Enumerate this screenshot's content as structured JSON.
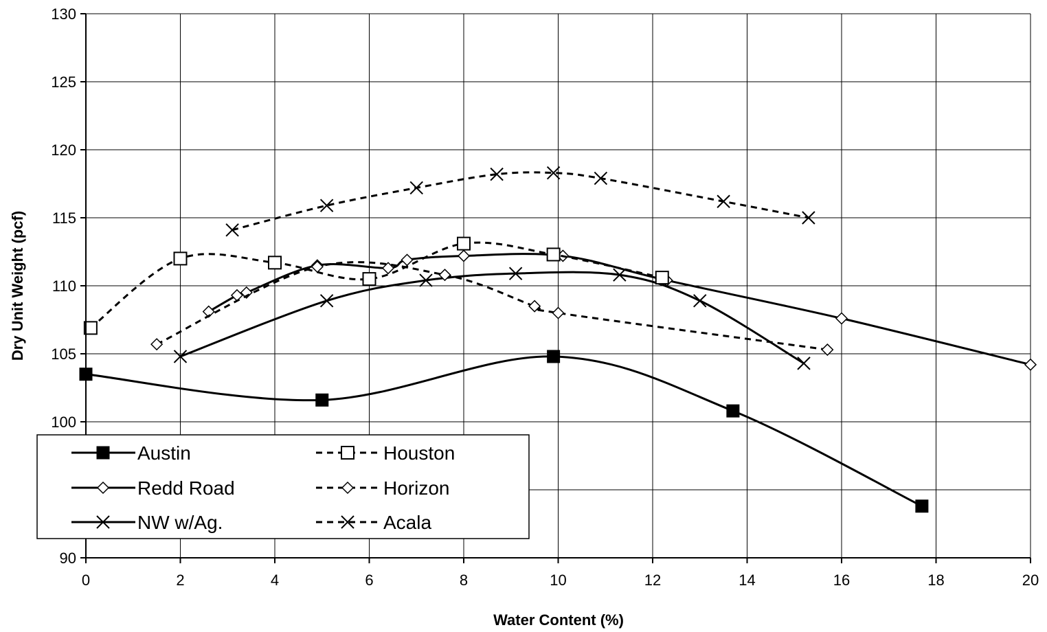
{
  "chart_data": {
    "type": "line",
    "title": "",
    "xlabel": "Water Content (%)",
    "ylabel": "Dry Unit Weight (pcf)",
    "xlim": [
      0,
      20
    ],
    "ylim": [
      90,
      130
    ],
    "xticks": [
      "0",
      "2",
      "4",
      "6",
      "8",
      "10",
      "12",
      "14",
      "16",
      "18",
      "20"
    ],
    "yticks": [
      "90",
      "95",
      "100",
      "105",
      "110",
      "115",
      "120",
      "125",
      "130"
    ],
    "ytick_labels_shown": [
      "90",
      "",
      "100",
      "105",
      "110",
      "115",
      "120",
      "125",
      "130"
    ],
    "grid": true,
    "legend_position": "bottom-left",
    "series": [
      {
        "name": "Austin",
        "line": "solid",
        "marker": "filled-square",
        "x": [
          0.0,
          5.0,
          9.9,
          13.7,
          17.7
        ],
        "y": [
          103.5,
          101.6,
          104.8,
          100.8,
          93.8
        ]
      },
      {
        "name": "Redd Road",
        "line": "solid",
        "marker": "open-diamond",
        "x": [
          2.6,
          3.2,
          3.4,
          4.9,
          6.4,
          6.8,
          8.0,
          10.1,
          12.3,
          16.0,
          20.0
        ],
        "y": [
          108.1,
          109.3,
          109.5,
          111.5,
          111.3,
          111.9,
          112.2,
          112.2,
          110.4,
          107.6,
          104.2
        ]
      },
      {
        "name": "NW w/Ag.",
        "line": "solid",
        "marker": "x",
        "x": [
          2.0,
          5.1,
          7.2,
          9.1,
          11.3,
          13.0,
          15.2
        ],
        "y": [
          104.8,
          108.9,
          110.4,
          110.9,
          110.8,
          108.9,
          104.3
        ]
      },
      {
        "name": "Houston",
        "line": "dashed",
        "marker": "open-square",
        "x": [
          0.1,
          2.0,
          4.0,
          6.0,
          8.0,
          9.9,
          12.2
        ],
        "y": [
          106.9,
          112.0,
          111.7,
          110.5,
          113.1,
          112.3,
          110.6
        ]
      },
      {
        "name": "Horizon",
        "line": "dashed",
        "marker": "open-diamond",
        "x": [
          1.5,
          4.9,
          7.6,
          9.5,
          10.0,
          15.7
        ],
        "y": [
          105.7,
          111.4,
          110.8,
          108.5,
          108.0,
          105.3
        ]
      },
      {
        "name": "Acala",
        "line": "dashed",
        "marker": "x",
        "x": [
          3.1,
          5.1,
          7.0,
          8.7,
          9.9,
          10.9,
          13.5,
          15.3
        ],
        "y": [
          114.1,
          115.9,
          117.2,
          118.2,
          118.3,
          117.9,
          116.2,
          115.0
        ]
      }
    ]
  }
}
